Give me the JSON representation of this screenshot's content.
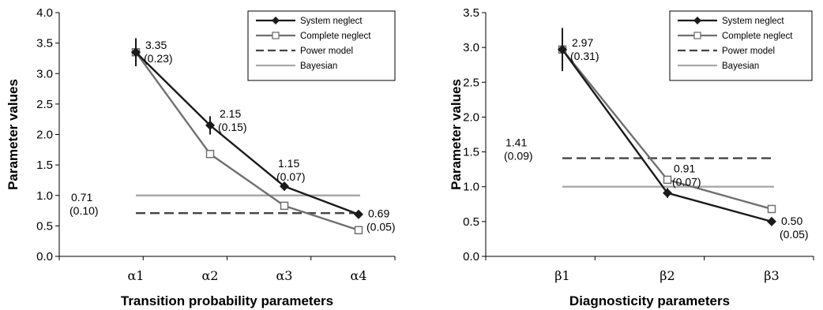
{
  "chart_data": [
    {
      "type": "line",
      "categories": [
        "α1",
        "α2",
        "α3",
        "α4"
      ],
      "xlabel": "Transition probability parameters",
      "ylabel": "Parameter values",
      "ylim": [
        0,
        4.0
      ],
      "yticks": [
        "0.0",
        "0.5",
        "1.0",
        "1.5",
        "2.0",
        "2.5",
        "3.0",
        "3.5",
        "4.0"
      ],
      "legend_position": "top-right",
      "series": [
        {
          "name": "System neglect",
          "values": [
            3.35,
            2.15,
            1.15,
            0.69
          ],
          "error": [
            0.23,
            0.15,
            0.07,
            0.05
          ],
          "color": "#1a1a1a",
          "marker": "diamond",
          "style": "solid"
        },
        {
          "name": "Complete neglect",
          "values": [
            3.35,
            1.68,
            0.83,
            0.43
          ],
          "color": "#707070",
          "marker": "square",
          "style": "solid"
        },
        {
          "name": "Power model",
          "values": [
            0.71,
            0.71,
            0.71,
            0.71
          ],
          "color": "#444444",
          "style": "dashed"
        },
        {
          "name": "Bayesian",
          "values": [
            1.0,
            1.0,
            1.0,
            1.0
          ],
          "color": "#a8a8a8",
          "style": "solid"
        }
      ],
      "annotations": [
        {
          "value": "3.35",
          "se": "(0.23)",
          "x": "α1",
          "y": 3.35
        },
        {
          "value": "2.15",
          "se": "(0.15)",
          "x": "α2",
          "y": 2.15
        },
        {
          "value": "1.15",
          "se": "(0.07)",
          "x": "α3",
          "y": 1.15
        },
        {
          "value": "0.69",
          "se": "(0.05)",
          "x": "α4",
          "y": 0.69
        },
        {
          "value": "0.71",
          "se": "(0.10)",
          "x": "α1",
          "y": 0.71
        }
      ]
    },
    {
      "type": "line",
      "categories": [
        "β1",
        "β2",
        "β3"
      ],
      "xlabel": "Diagnosticity parameters",
      "ylabel": "Parameter values",
      "ylim": [
        0,
        3.5
      ],
      "yticks": [
        "0.0",
        "0.5",
        "1.0",
        "1.5",
        "2.0",
        "2.5",
        "3.0",
        "3.5"
      ],
      "legend_position": "top-right",
      "series": [
        {
          "name": "System neglect",
          "values": [
            2.97,
            0.91,
            0.5
          ],
          "error": [
            0.31,
            0.07,
            0.05
          ],
          "color": "#1a1a1a",
          "marker": "diamond",
          "style": "solid"
        },
        {
          "name": "Complete neglect",
          "values": [
            2.97,
            1.1,
            0.68
          ],
          "color": "#707070",
          "marker": "square",
          "style": "solid"
        },
        {
          "name": "Power model",
          "values": [
            1.41,
            1.41,
            1.41
          ],
          "color": "#444444",
          "style": "dashed"
        },
        {
          "name": "Bayesian",
          "values": [
            1.0,
            1.0,
            1.0
          ],
          "color": "#a8a8a8",
          "style": "solid"
        }
      ],
      "annotations": [
        {
          "value": "2.97",
          "se": "(0.31)",
          "x": "β1",
          "y": 2.97
        },
        {
          "value": "0.91",
          "se": "(0.07)",
          "x": "β2",
          "y": 0.91
        },
        {
          "value": "0.50",
          "se": "(0.05)",
          "x": "β3",
          "y": 0.5
        },
        {
          "value": "1.41",
          "se": "(0.09)",
          "x": "β1",
          "y": 1.41
        }
      ]
    }
  ]
}
